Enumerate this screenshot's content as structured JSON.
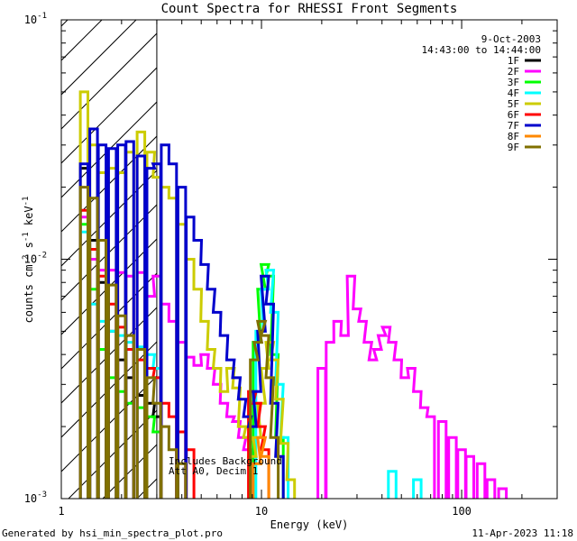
{
  "chart_data": {
    "type": "line",
    "title": "Count Spectra for RHESSI Front Segments",
    "xlabel": "Energy (keV)",
    "ylabel_main": "counts cm",
    "ylabel_exp1": "-2",
    "ylabel_mid": " s",
    "ylabel_exp2": "-1",
    "ylabel_end": " keV",
    "ylabel_exp3": "-1",
    "x_scale": "log",
    "y_scale": "log",
    "xlim": [
      1,
      300
    ],
    "ylim": [
      0.001,
      0.1
    ],
    "x_ticks": [
      {
        "value": 1,
        "label": "1"
      },
      {
        "value": 10,
        "label": "10"
      },
      {
        "value": 100,
        "label": "100"
      }
    ],
    "y_ticks": [
      {
        "value": 0.1,
        "base": "10",
        "exp": "-1"
      },
      {
        "value": 0.01,
        "base": "10",
        "exp": "-2"
      },
      {
        "value": 0.001,
        "base": "10",
        "exp": "-3"
      }
    ],
    "shaded_region": {
      "x_min": 1,
      "x_max": 3
    },
    "legend_placement": "top-right",
    "date_label": "9-Oct-2003",
    "time_label": "14:43:00 to 14:44:00",
    "annotation_lines": [
      "Includes Background",
      "Att A0, Decim 1"
    ],
    "footer_left": "Generated by hsi_min_spectra_plot.pro",
    "footer_right": "11-Apr-2023 11:18",
    "series": [
      {
        "name": "1F",
        "color": "#000000",
        "values": [
          [
            1.3,
            0.024
          ],
          [
            1.45,
            0.012
          ],
          [
            1.6,
            0.008
          ],
          [
            1.8,
            0.005
          ],
          [
            2.0,
            0.0038
          ],
          [
            2.2,
            0.0032
          ],
          [
            2.5,
            0.0027
          ],
          [
            2.8,
            0.0025
          ],
          [
            3.0,
            0.0022
          ]
        ]
      },
      {
        "name": "2F",
        "color": "#ff00ff",
        "values": [
          [
            1.3,
            0.015
          ],
          [
            1.45,
            0.01
          ],
          [
            1.6,
            0.009
          ],
          [
            1.8,
            0.009
          ],
          [
            2.0,
            0.0088
          ],
          [
            2.2,
            0.0085
          ],
          [
            2.5,
            0.0088
          ],
          [
            2.8,
            0.007
          ],
          [
            3.0,
            0.0085
          ],
          [
            3.3,
            0.0065
          ],
          [
            3.6,
            0.0055
          ],
          [
            4.0,
            0.0045
          ],
          [
            4.4,
            0.0039
          ],
          [
            4.8,
            0.0036
          ],
          [
            5.2,
            0.004
          ],
          [
            5.6,
            0.0035
          ],
          [
            6.0,
            0.003
          ],
          [
            6.5,
            0.0025
          ],
          [
            7.0,
            0.0022
          ],
          [
            7.5,
            0.0021
          ],
          [
            8.0,
            0.0018
          ],
          [
            8.5,
            0.0016
          ],
          [
            20,
            0.0035
          ],
          [
            22,
            0.0045
          ],
          [
            24,
            0.0055
          ],
          [
            26,
            0.0048
          ],
          [
            28,
            0.0085
          ],
          [
            30,
            0.0062
          ],
          [
            32,
            0.0055
          ],
          [
            34,
            0.0045
          ],
          [
            36,
            0.0038
          ],
          [
            38,
            0.0042
          ],
          [
            40,
            0.0048
          ],
          [
            42,
            0.0052
          ],
          [
            45,
            0.0045
          ],
          [
            48,
            0.0038
          ],
          [
            52,
            0.0032
          ],
          [
            56,
            0.0035
          ],
          [
            60,
            0.0028
          ],
          [
            65,
            0.0024
          ],
          [
            70,
            0.0022
          ],
          [
            80,
            0.0021
          ],
          [
            90,
            0.0018
          ],
          [
            100,
            0.0016
          ],
          [
            110,
            0.0015
          ],
          [
            125,
            0.0014
          ],
          [
            140,
            0.0012
          ],
          [
            160,
            0.0011
          ]
        ]
      },
      {
        "name": "3F",
        "color": "#00ff00",
        "values": [
          [
            1.3,
            0.014
          ],
          [
            1.45,
            0.0075
          ],
          [
            1.6,
            0.0042
          ],
          [
            1.8,
            0.0032
          ],
          [
            2.0,
            0.0028
          ],
          [
            2.2,
            0.0025
          ],
          [
            2.5,
            0.0024
          ],
          [
            2.8,
            0.0022
          ],
          [
            3.0,
            0.0019
          ],
          [
            9.5,
            0.0045
          ],
          [
            10,
            0.0075
          ],
          [
            10.4,
            0.0095
          ],
          [
            11,
            0.0085
          ],
          [
            11.6,
            0.004
          ],
          [
            12.3,
            0.0018
          ]
        ]
      },
      {
        "name": "4F",
        "color": "#00ffff",
        "values": [
          [
            1.3,
            0.013
          ],
          [
            1.45,
            0.0065
          ],
          [
            1.6,
            0.0055
          ],
          [
            1.8,
            0.005
          ],
          [
            2.0,
            0.0048
          ],
          [
            2.2,
            0.0045
          ],
          [
            2.5,
            0.0043
          ],
          [
            2.8,
            0.004
          ],
          [
            3.0,
            0.0035
          ],
          [
            9.8,
            0.005
          ],
          [
            10.4,
            0.0075
          ],
          [
            11,
            0.009
          ],
          [
            11.6,
            0.006
          ],
          [
            12.3,
            0.003
          ],
          [
            13,
            0.0018
          ],
          [
            45,
            0.0013
          ],
          [
            60,
            0.0012
          ]
        ]
      },
      {
        "name": "5F",
        "color": "#cccc00",
        "values": [
          [
            1.3,
            0.05
          ],
          [
            1.45,
            0.03
          ],
          [
            1.6,
            0.023
          ],
          [
            1.8,
            0.024
          ],
          [
            2.0,
            0.023
          ],
          [
            2.2,
            0.028
          ],
          [
            2.5,
            0.034
          ],
          [
            2.8,
            0.028
          ],
          [
            3.0,
            0.022
          ],
          [
            3.3,
            0.02
          ],
          [
            3.6,
            0.018
          ],
          [
            4.0,
            0.014
          ],
          [
            4.4,
            0.01
          ],
          [
            4.8,
            0.0075
          ],
          [
            5.2,
            0.0055
          ],
          [
            5.6,
            0.0042
          ],
          [
            6.0,
            0.0035
          ],
          [
            6.5,
            0.0028
          ],
          [
            7.0,
            0.0035
          ],
          [
            7.5,
            0.0029
          ],
          [
            8.0,
            0.002
          ],
          [
            8.5,
            0.0018
          ],
          [
            9.0,
            0.0015
          ],
          [
            9.5,
            0.0018
          ],
          [
            10,
            0.0025
          ],
          [
            10.4,
            0.0035
          ],
          [
            11,
            0.0045
          ],
          [
            11.6,
            0.0038
          ],
          [
            12.3,
            0.0026
          ],
          [
            13,
            0.0017
          ],
          [
            14,
            0.0012
          ]
        ]
      },
      {
        "name": "6F",
        "color": "#ff0000",
        "values": [
          [
            1.3,
            0.016
          ],
          [
            1.45,
            0.011
          ],
          [
            1.6,
            0.0085
          ],
          [
            1.8,
            0.0065
          ],
          [
            2.0,
            0.0052
          ],
          [
            2.2,
            0.0042
          ],
          [
            2.5,
            0.0038
          ],
          [
            2.8,
            0.0035
          ],
          [
            3.0,
            0.0032
          ],
          [
            3.3,
            0.0025
          ],
          [
            3.6,
            0.0022
          ],
          [
            4.0,
            0.0019
          ],
          [
            4.4,
            0.0016
          ],
          [
            9.0,
            0.0028
          ],
          [
            9.5,
            0.0025
          ],
          [
            10,
            0.002
          ],
          [
            10.4,
            0.0016
          ]
        ]
      },
      {
        "name": "7F",
        "color": "#0000cc",
        "values": [
          [
            1.3,
            0.025
          ],
          [
            1.45,
            0.035
          ],
          [
            1.6,
            0.03
          ],
          [
            1.8,
            0.029
          ],
          [
            2.0,
            0.03
          ],
          [
            2.2,
            0.031
          ],
          [
            2.5,
            0.027
          ],
          [
            2.8,
            0.024
          ],
          [
            3.0,
            0.025
          ],
          [
            3.3,
            0.03
          ],
          [
            3.6,
            0.025
          ],
          [
            4.0,
            0.02
          ],
          [
            4.4,
            0.015
          ],
          [
            4.8,
            0.012
          ],
          [
            5.2,
            0.0095
          ],
          [
            5.6,
            0.0075
          ],
          [
            6.0,
            0.006
          ],
          [
            6.5,
            0.0048
          ],
          [
            7.0,
            0.0038
          ],
          [
            7.5,
            0.0032
          ],
          [
            8.0,
            0.0026
          ],
          [
            8.5,
            0.0022
          ],
          [
            9.0,
            0.002
          ],
          [
            9.5,
            0.0028
          ],
          [
            10,
            0.005
          ],
          [
            10.4,
            0.0085
          ],
          [
            11,
            0.0065
          ],
          [
            11.6,
            0.0025
          ],
          [
            12.3,
            0.0015
          ]
        ]
      },
      {
        "name": "8F",
        "color": "#ff8800",
        "values": [
          [
            9.5,
            0.0014
          ],
          [
            10,
            0.0018
          ],
          [
            10.4,
            0.0015
          ]
        ]
      },
      {
        "name": "9F",
        "color": "#807000",
        "values": [
          [
            1.3,
            0.02
          ],
          [
            1.45,
            0.018
          ],
          [
            1.6,
            0.012
          ],
          [
            1.8,
            0.0078
          ],
          [
            2.0,
            0.0058
          ],
          [
            2.2,
            0.0048
          ],
          [
            2.5,
            0.0042
          ],
          [
            2.8,
            0.0032
          ],
          [
            3.0,
            0.0025
          ],
          [
            3.3,
            0.002
          ],
          [
            3.6,
            0.0016
          ],
          [
            4.0,
            0.0014
          ],
          [
            9.2,
            0.0038
          ],
          [
            9.6,
            0.0045
          ],
          [
            10,
            0.0055
          ],
          [
            10.4,
            0.0048
          ],
          [
            11,
            0.0032
          ],
          [
            11.6,
            0.0018
          ]
        ]
      }
    ]
  }
}
